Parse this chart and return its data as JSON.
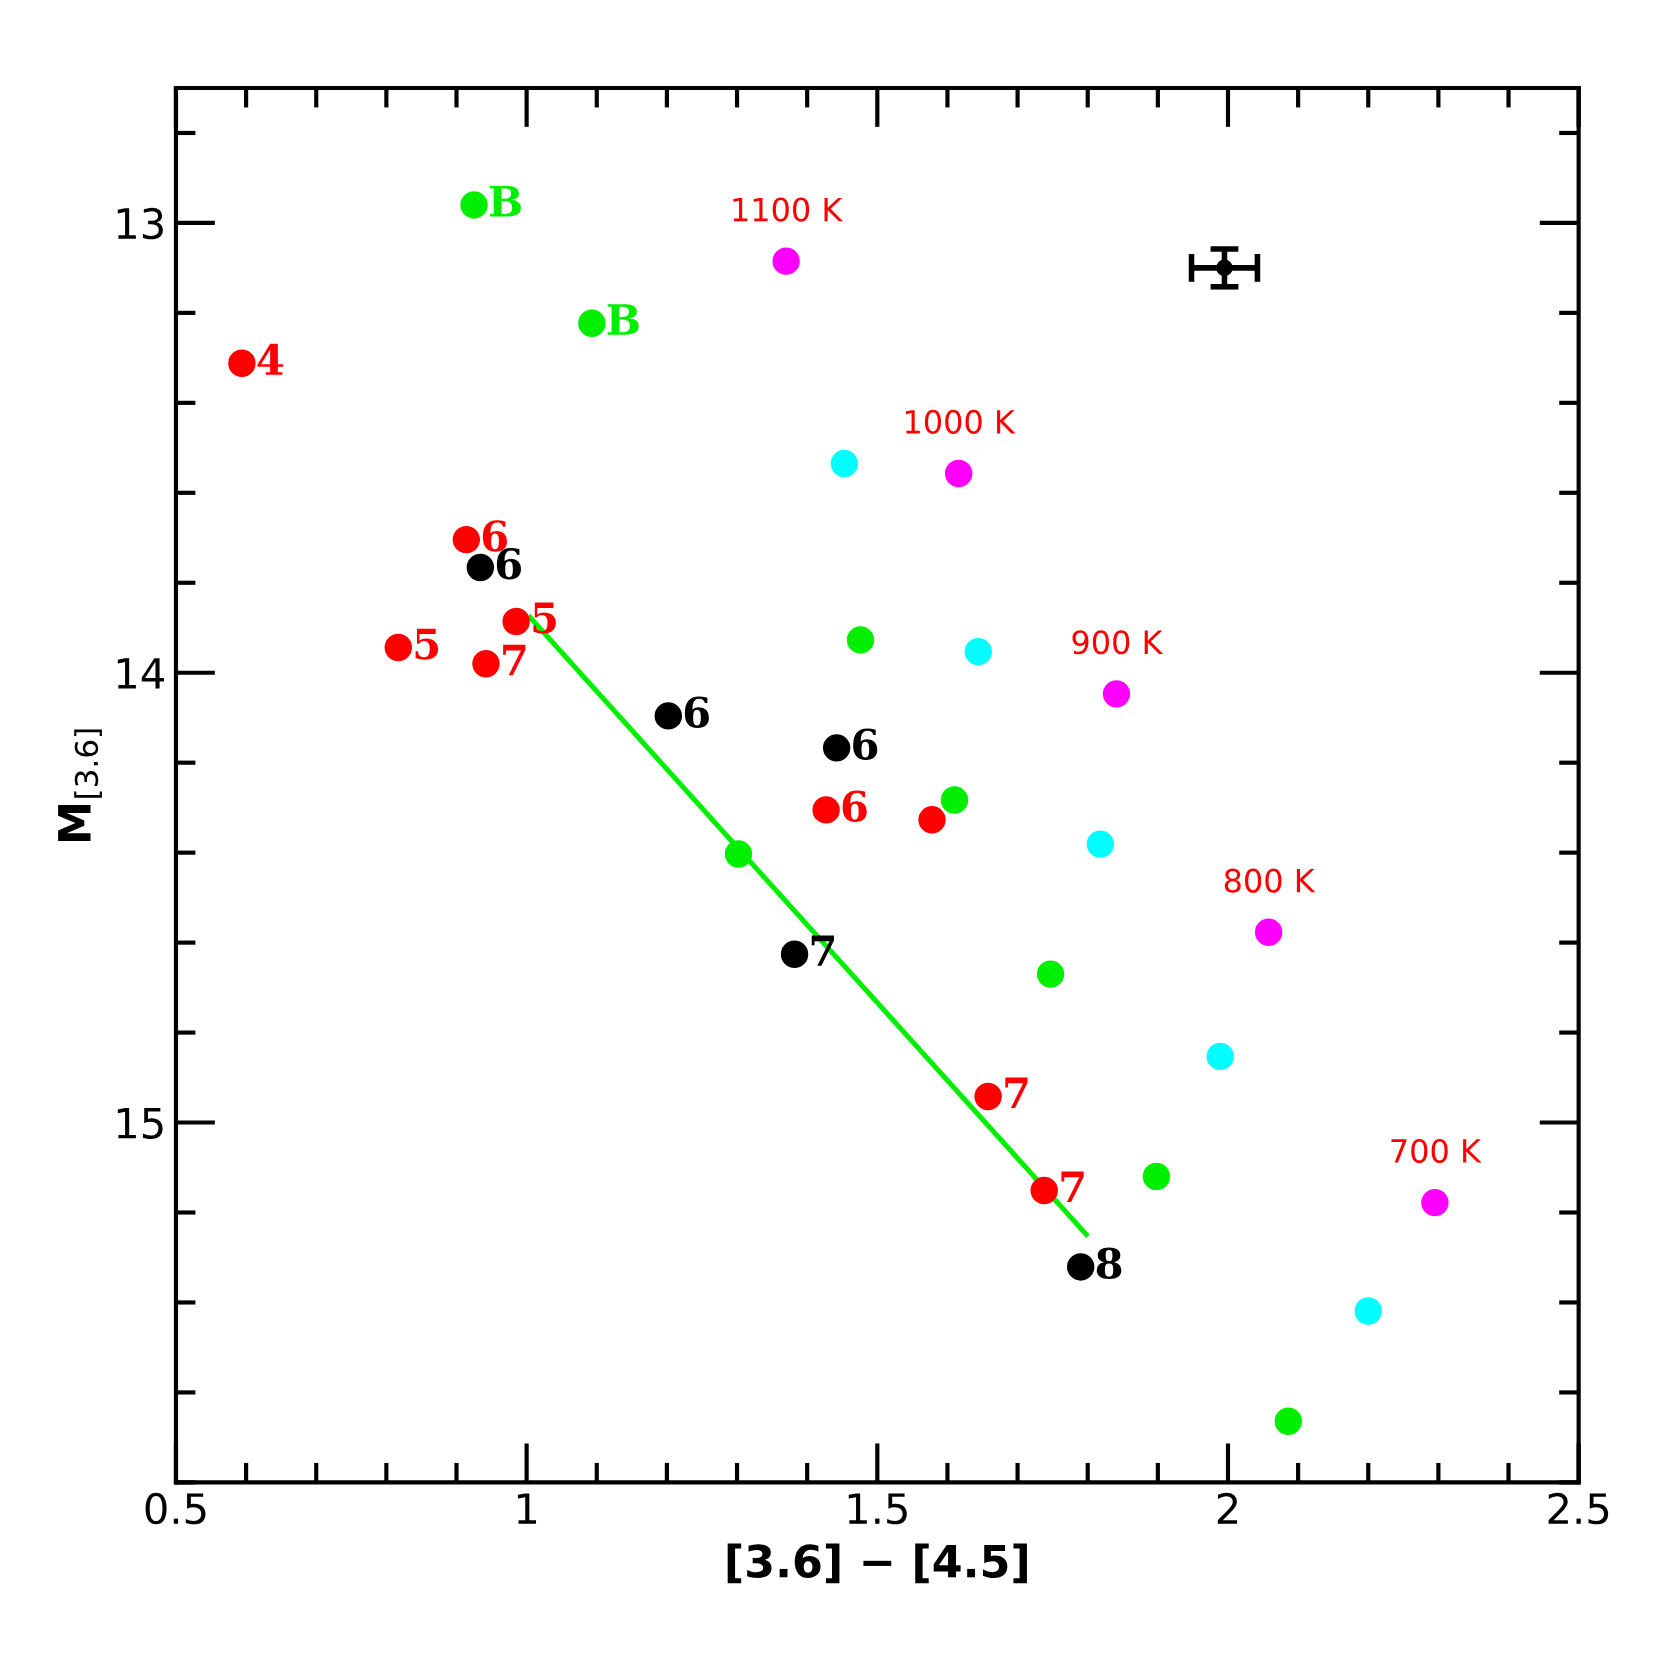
{
  "chart_data": {
    "type": "scatter",
    "xlabel": "[3.6] − [4.5]",
    "ylabel": "M$_{[3.6]}$",
    "xlim": [
      0.5,
      2.5
    ],
    "ylim": [
      15.8,
      12.7
    ],
    "xticks": [
      0.5,
      1,
      1.5,
      2,
      2.5
    ],
    "yticks": [
      13,
      14,
      15
    ],
    "grid": false,
    "legend": false,
    "series": [
      {
        "type": "scatter",
        "color": "#ff00ff",
        "marker": "circle",
        "x": [
          1.37,
          1.616,
          1.841,
          2.058,
          2.295
        ],
        "values": [
          13.085,
          13.557,
          14.047,
          14.577,
          15.178
        ]
      },
      {
        "type": "scatter",
        "color": "#00ffff",
        "marker": "circle",
        "x": [
          1.453,
          1.644,
          1.818,
          1.989,
          2.2
        ],
        "values": [
          13.535,
          13.953,
          14.381,
          14.853,
          15.419
        ]
      },
      {
        "type": "scatter",
        "color": "#00ee00",
        "marker": "circle",
        "x": [
          1.476,
          1.61,
          1.747,
          1.898,
          2.086
        ],
        "values": [
          13.927,
          14.283,
          14.67,
          15.12,
          15.664
        ]
      },
      {
        "type": "line",
        "color": "#00ee00",
        "marker": "none",
        "x": [
          1.005,
          1.798
        ],
        "values": [
          13.877,
          15.249
        ]
      },
      {
        "type": "scatter",
        "color": "#00ee00",
        "marker": "circle",
        "x": [
          1.302
        ],
        "values": [
          14.403
        ]
      },
      {
        "type": "scatter",
        "color": "#ff0000",
        "marker": "circle",
        "x": [
          1.578
        ],
        "values": [
          14.327
        ]
      },
      {
        "type": "scatter",
        "color": "#000000",
        "marker": "circle",
        "x": [
          1.995
        ],
        "values": [
          13.1
        ],
        "xerrors": [
          0.047
        ],
        "errors": [
          0.042
        ]
      },
      {
        "type": "scatter",
        "color": "#00ee00",
        "marker": "circle",
        "x": [
          0.925,
          1.093
        ],
        "values": [
          12.96,
          13.223
        ]
      },
      {
        "type": "scatter",
        "color": "#ff0000",
        "marker": "circle",
        "x": [
          0.594,
          0.817,
          0.985,
          0.914,
          1.427,
          0.942,
          1.658,
          1.738
        ],
        "values": [
          13.312,
          13.944,
          13.886,
          13.704,
          14.305,
          13.98,
          14.942,
          15.151
        ]
      },
      {
        "type": "scatter",
        "color": "#000000",
        "marker": "circle",
        "x": [
          0.934,
          1.202,
          1.442,
          1.382,
          1.79
        ],
        "values": [
          13.766,
          14.096,
          14.167,
          14.626,
          15.321
        ]
      }
    ],
    "annotations": [
      {
        "text": "B",
        "x": 0.925,
        "y": 12.96
      },
      {
        "text": "B",
        "x": 1.093,
        "y": 13.223
      },
      {
        "text": "4",
        "x": 0.594,
        "y": 13.312
      },
      {
        "text": "5",
        "x": 0.817,
        "y": 13.944
      },
      {
        "text": "5",
        "x": 0.985,
        "y": 13.886
      },
      {
        "text": "6",
        "x": 0.914,
        "y": 13.704
      },
      {
        "text": "6",
        "x": 1.427,
        "y": 14.305
      },
      {
        "text": "7",
        "x": 0.942,
        "y": 13.98
      },
      {
        "text": "7",
        "x": 1.658,
        "y": 14.942
      },
      {
        "text": "7",
        "x": 1.738,
        "y": 15.151
      },
      {
        "text": "6",
        "x": 0.934,
        "y": 13.766
      },
      {
        "text": "6",
        "x": 1.202,
        "y": 14.096
      },
      {
        "text": "6",
        "x": 1.442,
        "y": 14.167
      },
      {
        "text": "7",
        "x": 1.382,
        "y": 14.626
      },
      {
        "text": "8",
        "x": 1.79,
        "y": 15.321
      },
      {
        "text": "1100 K",
        "x": 1.37,
        "y": 13.085
      },
      {
        "text": "1000 K",
        "x": 1.616,
        "y": 13.557
      },
      {
        "text": "900 K",
        "x": 1.841,
        "y": 14.047
      },
      {
        "text": "800 K",
        "x": 2.058,
        "y": 14.577
      },
      {
        "text": "700 K",
        "x": 2.295,
        "y": 15.178
      }
    ]
  }
}
